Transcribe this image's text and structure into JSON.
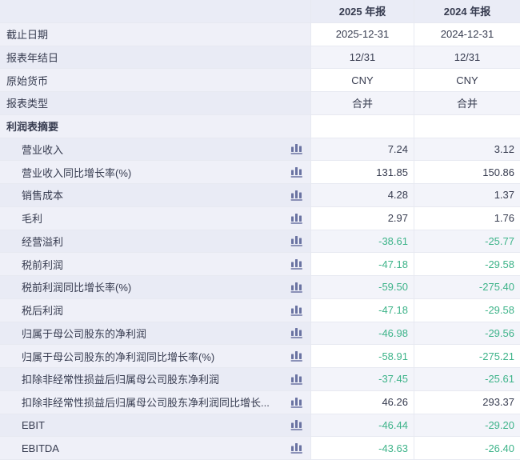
{
  "colors": {
    "header_bg": "#eaecf6",
    "label_col_bg": "#eff0f8",
    "label_col_bg_stripe": "#e9ebf5",
    "value_bg": "#ffffff",
    "value_bg_stripe": "#f3f4fa",
    "border": "#e7e9f1",
    "text": "#363b4f",
    "negative_value": "#3db389",
    "icon": "#6a73a2"
  },
  "table": {
    "columns": [
      {
        "label": ""
      },
      {
        "label": "2025 年报"
      },
      {
        "label": "2024 年报"
      }
    ],
    "rows": [
      {
        "label": "截止日期",
        "values": [
          "2025-12-31",
          "2024-12-31"
        ],
        "type": "info"
      },
      {
        "label": "报表年结日",
        "values": [
          "12/31",
          "12/31"
        ],
        "type": "info"
      },
      {
        "label": "原始货币",
        "values": [
          "CNY",
          "CNY"
        ],
        "type": "info"
      },
      {
        "label": "报表类型",
        "values": [
          "合并",
          "合并"
        ],
        "type": "info"
      },
      {
        "label": "利润表摘要",
        "values": [
          "",
          ""
        ],
        "type": "section"
      },
      {
        "label": "营业收入",
        "values": [
          "7.24",
          "3.12"
        ],
        "type": "metric",
        "icon": "bar-chart-icon"
      },
      {
        "label": "营业收入同比增长率(%)",
        "values": [
          "131.85",
          "150.86"
        ],
        "type": "metric",
        "icon": "bar-chart-icon"
      },
      {
        "label": "销售成本",
        "values": [
          "4.28",
          "1.37"
        ],
        "type": "metric",
        "icon": "bar-chart-icon"
      },
      {
        "label": "毛利",
        "values": [
          "2.97",
          "1.76"
        ],
        "type": "metric",
        "icon": "bar-chart-icon"
      },
      {
        "label": "经营溢利",
        "values": [
          "-38.61",
          "-25.77"
        ],
        "type": "metric",
        "icon": "bar-chart-icon"
      },
      {
        "label": "税前利润",
        "values": [
          "-47.18",
          "-29.58"
        ],
        "type": "metric",
        "icon": "bar-chart-icon"
      },
      {
        "label": "税前利润同比增长率(%)",
        "values": [
          "-59.50",
          "-275.40"
        ],
        "type": "metric",
        "icon": "bar-chart-icon"
      },
      {
        "label": "税后利润",
        "values": [
          "-47.18",
          "-29.58"
        ],
        "type": "metric",
        "icon": "bar-chart-icon"
      },
      {
        "label": "归属于母公司股东的净利润",
        "values": [
          "-46.98",
          "-29.56"
        ],
        "type": "metric",
        "icon": "bar-chart-icon"
      },
      {
        "label": "归属于母公司股东的净利润同比增长率(%)",
        "values": [
          "-58.91",
          "-275.21"
        ],
        "type": "metric",
        "icon": "bar-chart-icon"
      },
      {
        "label": "扣除非经常性损益后归属母公司股东净利润",
        "values": [
          "-37.45",
          "-25.61"
        ],
        "type": "metric",
        "icon": "bar-chart-icon"
      },
      {
        "label": "扣除非经常性损益后归属母公司股东净利润同比增长...",
        "values": [
          "46.26",
          "293.37"
        ],
        "type": "metric",
        "icon": "bar-chart-icon"
      },
      {
        "label": "EBIT",
        "values": [
          "-46.44",
          "-29.20"
        ],
        "type": "metric",
        "icon": "bar-chart-icon"
      },
      {
        "label": "EBITDA",
        "values": [
          "-43.63",
          "-26.40"
        ],
        "type": "metric",
        "icon": "bar-chart-icon"
      }
    ]
  }
}
